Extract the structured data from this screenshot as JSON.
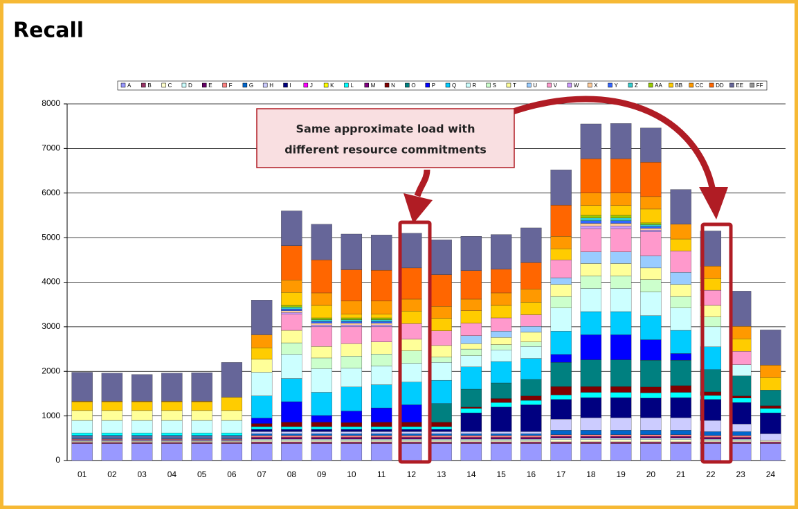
{
  "chart_data": {
    "type": "stacked_bar",
    "title": "Recall",
    "annotation": [
      "Same approximate load with",
      "different resource commitments"
    ],
    "categories": [
      "01",
      "02",
      "03",
      "04",
      "05",
      "06",
      "07",
      "08",
      "09",
      "10",
      "11",
      "12",
      "13",
      "14",
      "15",
      "16",
      "17",
      "18",
      "19",
      "20",
      "21",
      "22",
      "23",
      "24"
    ],
    "ylim": [
      0,
      8000
    ],
    "yticks": [
      0,
      1000,
      2000,
      3000,
      4000,
      5000,
      6000,
      7000,
      8000
    ],
    "grid": true,
    "legend": "top",
    "series": [
      {
        "name": "A",
        "color": "#9999ff",
        "values": [
          380,
          380,
          380,
          380,
          380,
          380,
          380,
          380,
          380,
          380,
          380,
          380,
          380,
          380,
          380,
          380,
          380,
          380,
          380,
          380,
          380,
          380,
          380,
          380
        ]
      },
      {
        "name": "B",
        "color": "#993366",
        "values": [
          30,
          30,
          30,
          30,
          30,
          30,
          40,
          40,
          40,
          40,
          40,
          40,
          40,
          40,
          40,
          40,
          40,
          40,
          40,
          40,
          40,
          40,
          40,
          40
        ]
      },
      {
        "name": "C",
        "color": "#ffffcc",
        "values": [
          20,
          20,
          20,
          20,
          20,
          20,
          30,
          30,
          30,
          30,
          30,
          30,
          30,
          30,
          30,
          30,
          50,
          50,
          50,
          50,
          50,
          30,
          30,
          30
        ]
      },
      {
        "name": "D",
        "color": "#ccffff",
        "values": [
          20,
          20,
          20,
          20,
          20,
          20,
          30,
          30,
          30,
          30,
          30,
          30,
          30,
          30,
          30,
          30,
          30,
          30,
          30,
          30,
          30,
          30,
          30,
          0
        ]
      },
      {
        "name": "E",
        "color": "#660066",
        "values": [
          20,
          20,
          20,
          20,
          20,
          20,
          40,
          40,
          40,
          40,
          40,
          40,
          40,
          40,
          40,
          40,
          40,
          40,
          40,
          40,
          40,
          40,
          40,
          0
        ]
      },
      {
        "name": "F",
        "color": "#ff8080",
        "values": [
          20,
          20,
          20,
          20,
          20,
          20,
          40,
          40,
          40,
          40,
          40,
          40,
          40,
          40,
          40,
          40,
          40,
          40,
          40,
          40,
          40,
          40,
          40,
          0
        ]
      },
      {
        "name": "G",
        "color": "#0066cc",
        "values": [
          30,
          30,
          30,
          30,
          30,
          30,
          40,
          40,
          40,
          40,
          40,
          40,
          40,
          40,
          40,
          40,
          100,
          100,
          100,
          100,
          100,
          90,
          90,
          0
        ]
      },
      {
        "name": "H",
        "color": "#ccccff",
        "values": [
          20,
          20,
          20,
          20,
          20,
          20,
          50,
          50,
          50,
          50,
          50,
          50,
          50,
          50,
          50,
          50,
          250,
          280,
          280,
          280,
          280,
          250,
          170,
          150
        ]
      },
      {
        "name": "I",
        "color": "#000080",
        "values": [
          20,
          20,
          20,
          20,
          20,
          20,
          50,
          50,
          50,
          50,
          50,
          50,
          50,
          420,
          550,
          600,
          440,
          450,
          450,
          440,
          450,
          470,
          480,
          470
        ]
      },
      {
        "name": "J",
        "color": "#ff00ff",
        "values": [
          0,
          0,
          0,
          0,
          0,
          0,
          0,
          0,
          0,
          0,
          0,
          0,
          0,
          0,
          0,
          0,
          0,
          0,
          0,
          0,
          0,
          0,
          0,
          0
        ]
      },
      {
        "name": "K",
        "color": "#ffff00",
        "values": [
          0,
          0,
          0,
          0,
          0,
          0,
          0,
          0,
          0,
          0,
          0,
          0,
          0,
          0,
          0,
          0,
          0,
          0,
          0,
          0,
          0,
          0,
          0,
          0
        ]
      },
      {
        "name": "L",
        "color": "#00ffff",
        "values": [
          60,
          60,
          60,
          60,
          60,
          60,
          60,
          60,
          60,
          60,
          60,
          60,
          60,
          100,
          100,
          100,
          100,
          120,
          120,
          120,
          120,
          90,
          100,
          100
        ]
      },
      {
        "name": "M",
        "color": "#800080",
        "values": [
          0,
          0,
          0,
          0,
          0,
          0,
          0,
          0,
          0,
          0,
          0,
          0,
          0,
          0,
          0,
          0,
          0,
          0,
          0,
          0,
          0,
          0,
          0,
          0
        ]
      },
      {
        "name": "N",
        "color": "#800000",
        "values": [
          0,
          0,
          0,
          0,
          0,
          0,
          70,
          100,
          100,
          90,
          100,
          100,
          100,
          30,
          90,
          100,
          190,
          130,
          130,
          130,
          150,
          80,
          50,
          60
        ]
      },
      {
        "name": "O",
        "color": "#008080",
        "values": [
          0,
          0,
          0,
          0,
          0,
          0,
          0,
          0,
          0,
          0,
          0,
          0,
          420,
          400,
          350,
          370,
          540,
          600,
          600,
          600,
          570,
          500,
          450,
          350
        ]
      },
      {
        "name": "P",
        "color": "#0000ff",
        "values": [
          0,
          0,
          0,
          0,
          0,
          0,
          120,
          460,
          150,
          260,
          320,
          390,
          0,
          0,
          0,
          0,
          180,
          560,
          560,
          460,
          150,
          0,
          0,
          0
        ]
      },
      {
        "name": "Q",
        "color": "#00ccff",
        "values": [
          0,
          0,
          0,
          0,
          0,
          0,
          500,
          520,
          520,
          540,
          520,
          510,
          520,
          500,
          480,
          470,
          520,
          520,
          520,
          540,
          520,
          510,
          0,
          0
        ]
      },
      {
        "name": "R",
        "color": "#ccffff",
        "values": [
          280,
          280,
          280,
          280,
          280,
          280,
          530,
          540,
          530,
          420,
          420,
          420,
          400,
          250,
          260,
          270,
          520,
          520,
          520,
          530,
          500,
          450,
          250,
          0
        ]
      },
      {
        "name": "S",
        "color": "#ccffcc",
        "values": [
          0,
          0,
          0,
          0,
          0,
          0,
          0,
          260,
          240,
          270,
          270,
          280,
          120,
          150,
          120,
          100,
          260,
          280,
          280,
          280,
          260,
          220,
          0,
          0
        ]
      },
      {
        "name": "T",
        "color": "#ffff99",
        "values": [
          220,
          220,
          220,
          220,
          220,
          220,
          290,
          280,
          260,
          280,
          270,
          260,
          260,
          120,
          160,
          220,
          270,
          280,
          280,
          260,
          270,
          260,
          0,
          0
        ]
      },
      {
        "name": "U",
        "color": "#99ccff",
        "values": [
          0,
          0,
          0,
          0,
          0,
          0,
          0,
          0,
          0,
          0,
          0,
          0,
          0,
          180,
          140,
          130,
          150,
          260,
          260,
          270,
          270,
          0,
          0,
          0
        ]
      },
      {
        "name": "V",
        "color": "#ff99cc",
        "values": [
          0,
          0,
          0,
          0,
          0,
          0,
          0,
          360,
          440,
          380,
          340,
          350,
          330,
          280,
          300,
          260,
          400,
          520,
          520,
          540,
          480,
          340,
          300,
          0
        ]
      },
      {
        "name": "W",
        "color": "#cc99ff",
        "values": [
          0,
          0,
          0,
          0,
          0,
          0,
          0,
          40,
          40,
          40,
          40,
          0,
          0,
          0,
          0,
          0,
          0,
          60,
          60,
          40,
          0,
          0,
          0,
          0
        ]
      },
      {
        "name": "X",
        "color": "#ffcc99",
        "values": [
          0,
          0,
          0,
          0,
          0,
          0,
          0,
          40,
          40,
          40,
          40,
          0,
          0,
          0,
          0,
          0,
          0,
          60,
          60,
          40,
          0,
          0,
          0,
          0
        ]
      },
      {
        "name": "Y",
        "color": "#3366ff",
        "values": [
          0,
          0,
          0,
          0,
          0,
          0,
          0,
          40,
          40,
          40,
          40,
          0,
          0,
          0,
          0,
          0,
          0,
          60,
          60,
          40,
          0,
          0,
          0,
          0
        ]
      },
      {
        "name": "Z",
        "color": "#33cccc",
        "values": [
          0,
          0,
          0,
          0,
          0,
          0,
          0,
          40,
          40,
          40,
          40,
          0,
          0,
          0,
          0,
          0,
          0,
          60,
          60,
          40,
          0,
          0,
          0,
          0
        ]
      },
      {
        "name": "AA",
        "color": "#99cc00",
        "values": [
          0,
          0,
          0,
          0,
          0,
          0,
          0,
          40,
          40,
          40,
          40,
          0,
          0,
          0,
          0,
          0,
          0,
          60,
          60,
          40,
          0,
          0,
          0,
          0
        ]
      },
      {
        "name": "BB",
        "color": "#ffcc00",
        "values": [
          200,
          200,
          200,
          200,
          200,
          300,
          260,
          290,
          280,
          80,
          80,
          280,
          280,
          280,
          280,
          280,
          250,
          220,
          220,
          310,
          270,
          260,
          280,
          280
        ]
      },
      {
        "name": "CC",
        "color": "#ff9900",
        "values": [
          10,
          10,
          10,
          10,
          10,
          0,
          290,
          280,
          280,
          300,
          300,
          270,
          270,
          260,
          280,
          300,
          280,
          280,
          280,
          280,
          330,
          280,
          280,
          280
        ]
      },
      {
        "name": "DD",
        "color": "#ff6600",
        "values": [
          0,
          0,
          0,
          0,
          0,
          0,
          0,
          770,
          740,
          700,
          690,
          700,
          710,
          640,
          530,
          590,
          700,
          770,
          770,
          770,
          0,
          0,
          0,
          0
        ]
      },
      {
        "name": "EE",
        "color": "#666699",
        "values": [
          650,
          630,
          600,
          630,
          640,
          780,
          780,
          780,
          800,
          800,
          790,
          780,
          780,
          770,
          780,
          780,
          790,
          780,
          790,
          770,
          780,
          790,
          790,
          790
        ]
      },
      {
        "name": "FF",
        "color": "#969696",
        "values": [
          0,
          0,
          0,
          0,
          0,
          0,
          0,
          0,
          0,
          0,
          0,
          0,
          0,
          0,
          0,
          0,
          0,
          0,
          0,
          0,
          0,
          0,
          0,
          0
        ]
      }
    ]
  }
}
